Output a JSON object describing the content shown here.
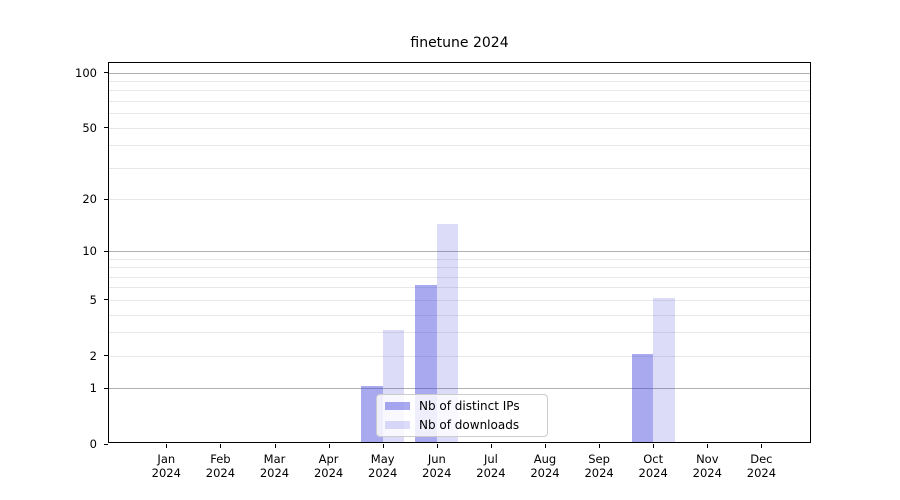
{
  "chart_data": {
    "type": "bar",
    "title": "finetune 2024",
    "categories": [
      {
        "month": "Jan",
        "year": "2024"
      },
      {
        "month": "Feb",
        "year": "2024"
      },
      {
        "month": "Mar",
        "year": "2024"
      },
      {
        "month": "Apr",
        "year": "2024"
      },
      {
        "month": "May",
        "year": "2024"
      },
      {
        "month": "Jun",
        "year": "2024"
      },
      {
        "month": "Jul",
        "year": "2024"
      },
      {
        "month": "Aug",
        "year": "2024"
      },
      {
        "month": "Sep",
        "year": "2024"
      },
      {
        "month": "Oct",
        "year": "2024"
      },
      {
        "month": "Nov",
        "year": "2024"
      },
      {
        "month": "Dec",
        "year": "2024"
      }
    ],
    "series": [
      {
        "name": "Nb of distinct IPs",
        "slug": "distinct-ips",
        "color": "rgba(60,60,220,0.44)",
        "values": [
          0,
          0,
          0,
          0,
          1,
          6,
          0,
          0,
          0,
          2,
          0,
          0
        ]
      },
      {
        "name": "Nb of downloads",
        "slug": "downloads",
        "color": "rgba(60,60,220,0.18)",
        "values": [
          0,
          0,
          0,
          0,
          3,
          14,
          0,
          0,
          0,
          5,
          0,
          0
        ]
      }
    ],
    "y_axis": {
      "scale": "log1p",
      "ylim": [
        0,
        112.8
      ],
      "ticks": [
        {
          "value": 100,
          "label": "100"
        },
        {
          "value": 50,
          "label": "50"
        },
        {
          "value": 20,
          "label": "20"
        },
        {
          "value": 10,
          "label": "10"
        },
        {
          "value": 5,
          "label": "5"
        },
        {
          "value": 2,
          "label": "2"
        },
        {
          "value": 1,
          "label": "1"
        },
        {
          "value": 0,
          "label": "0"
        }
      ],
      "decade_gridlines": [
        1,
        10,
        100
      ],
      "light_gridlines": [
        2,
        3,
        4,
        5,
        6,
        7,
        8,
        9,
        20,
        30,
        40,
        50,
        60,
        70,
        80,
        90
      ]
    },
    "legend": {
      "position": "inside-bottom-center"
    },
    "colors": {
      "grid_major": "#b0b0b0",
      "grid_minor": "#e8e8e8",
      "spine": "#000000",
      "background": "#ffffff"
    }
  }
}
